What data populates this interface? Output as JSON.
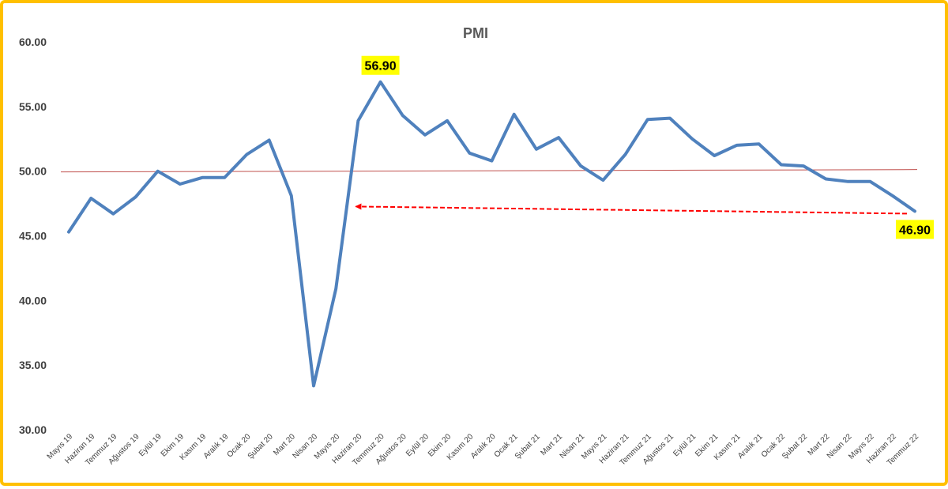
{
  "chart_data": {
    "type": "line",
    "title": "PMI",
    "xlabel": "",
    "ylabel": "",
    "ylim": [
      30,
      60
    ],
    "yticks": [
      "30.00",
      "35.00",
      "40.00",
      "45.00",
      "50.00",
      "55.00",
      "60.00"
    ],
    "grid": false,
    "legend": "none",
    "categories": [
      "Mayıs 19",
      "Haziran 19",
      "Temmuz 19",
      "Ağustos 19",
      "Eylül 19",
      "Ekim 19",
      "Kasım 19",
      "Aralık 19",
      "Ocak 20",
      "Şubat 20",
      "Mart 20",
      "Nisan 20",
      "Mayıs 20",
      "Haziran 20",
      "Temmuz 20",
      "Ağustos 20",
      "Eylül 20",
      "Ekim 20",
      "Kasım 20",
      "Aralık 20",
      "Ocak 21",
      "Şubat 21",
      "Mart 21",
      "Nisan 21",
      "Mayıs 21",
      "Haziran 21",
      "Temmuz 21",
      "Ağustos 21",
      "Eylül 21",
      "Ekim 21",
      "Kasım 21",
      "Aralık 21",
      "Ocak 22",
      "Şubat 22",
      "Mart 22",
      "Nisan 22",
      "Mayıs 22",
      "Haziran 22",
      "Temmuz 22"
    ],
    "series": [
      {
        "name": "",
        "values": [
          45.3,
          47.9,
          46.7,
          48.0,
          50.0,
          49.0,
          49.5,
          49.5,
          51.3,
          52.4,
          48.1,
          33.4,
          40.9,
          53.9,
          56.9,
          54.3,
          52.8,
          53.9,
          51.4,
          50.8,
          54.4,
          51.7,
          52.6,
          50.4,
          49.3,
          51.3,
          54.0,
          54.1,
          52.5,
          51.2,
          52.0,
          52.1,
          50.5,
          50.4,
          49.4,
          49.2,
          49.2,
          48.1,
          46.9
        ],
        "color": "#4f81bd"
      }
    ],
    "reference_line": {
      "value": 50.0,
      "color": "#c0504d"
    },
    "callouts": [
      {
        "category": "Temmuz 20",
        "label": "56.90",
        "background": "#ffff00"
      },
      {
        "category": "Temmuz 22",
        "label": "46.90",
        "background": "#ffff00"
      }
    ],
    "arrow": {
      "from_category": "Temmuz 22",
      "to_category": "Haziran 20",
      "value": 46.9,
      "color": "#ff0000"
    }
  }
}
